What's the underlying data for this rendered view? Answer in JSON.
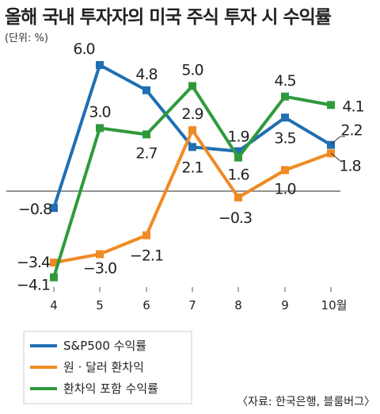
{
  "title": "올해 국내 투자자의 미국 주식 투자 시 수익률",
  "unit": "(단위: %)",
  "source": "〈자료: 한국은행, 블룸버그〉",
  "colors": {
    "sp500": "#1f6fb2",
    "fx": "#f08a24",
    "total": "#2e9a3c",
    "zero_line": "#555555"
  },
  "chart_data": {
    "type": "line",
    "title": "올해 국내 투자자의 미국 주식 투자 시 수익률",
    "x": [
      "4",
      "5",
      "6",
      "7",
      "8",
      "9",
      "10월"
    ],
    "ylim": [
      -4.5,
      6.5
    ],
    "grid": false,
    "legend_position": "bottom-left",
    "series": [
      {
        "key": "sp500",
        "name": "S&P500 수익률",
        "values": [
          -0.8,
          6.0,
          4.8,
          2.1,
          1.9,
          3.5,
          2.2
        ],
        "labels": [
          "−0.8",
          "6.0",
          "4.8",
          "2.1",
          "1.9",
          "3.5",
          "2.2"
        ]
      },
      {
        "key": "fx",
        "name": "원 · 달러 환차익",
        "values": [
          -3.4,
          -3.0,
          -2.1,
          2.9,
          -0.3,
          1.0,
          1.8
        ],
        "labels": [
          "−3.4",
          "−3.0",
          "−2.1",
          "2.9",
          "−0.3",
          "1.0",
          "1.8"
        ]
      },
      {
        "key": "total",
        "name": "환차익 포함 수익률",
        "values": [
          -4.1,
          3.0,
          2.7,
          5.0,
          1.6,
          4.5,
          4.1
        ],
        "labels": [
          "−4.1",
          "3.0",
          "2.7",
          "5.0",
          "1.6",
          "4.5",
          "4.1"
        ]
      }
    ]
  }
}
